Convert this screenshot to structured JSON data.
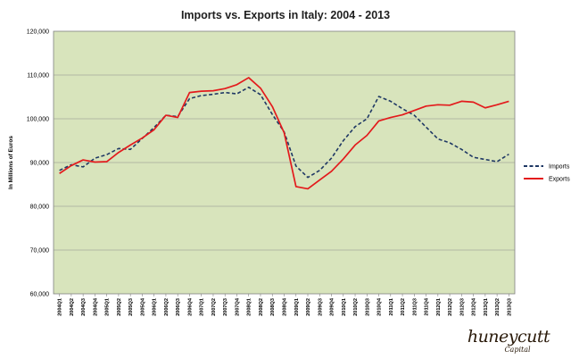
{
  "colors": {
    "plot_background": "#d8e4bc",
    "imports": "#1f3864",
    "exports": "#e31a1c",
    "grid": "#8c8c8c"
  },
  "brand": {
    "name": "huneycutt",
    "sub": "Capital"
  },
  "chart_data": {
    "type": "line",
    "title": "Imports vs. Exports in Italy: 2004 - 2013",
    "xlabel": "",
    "ylabel": "In Millions of Euros",
    "ylim": [
      60000,
      120000
    ],
    "yticks": [
      60000,
      70000,
      80000,
      90000,
      100000,
      110000,
      120000
    ],
    "ytick_labels": [
      "60,000",
      "70,000",
      "80,000",
      "90,000",
      "100,000",
      "110,000",
      "120,000"
    ],
    "grid": true,
    "legend_position": "right",
    "categories": [
      "2004Q1",
      "2004Q2",
      "2004Q3",
      "2004Q4",
      "2005Q1",
      "2005Q2",
      "2005Q3",
      "2005Q4",
      "2006Q1",
      "2006Q2",
      "2006Q3",
      "2006Q4",
      "2007Q1",
      "2007Q2",
      "2007Q3",
      "2007Q4",
      "2008Q1",
      "2008Q2",
      "2008Q3",
      "2008Q4",
      "2009Q1",
      "2009Q2",
      "2009Q3",
      "2009Q4",
      "2010Q1",
      "2010Q2",
      "2010Q3",
      "2010Q4",
      "2011Q1",
      "2011Q2",
      "2011Q3",
      "2011Q4",
      "2012Q1",
      "2012Q2",
      "2012Q3",
      "2012Q4",
      "2013Q1",
      "2013Q2",
      "2013Q3"
    ],
    "series": [
      {
        "name": "Imports",
        "style": "dashed",
        "values": [
          88200,
          89500,
          89000,
          91000,
          91800,
          93200,
          93000,
          95500,
          98000,
          100800,
          100500,
          104600,
          105300,
          105600,
          106000,
          105700,
          107200,
          105500,
          101000,
          97000,
          89200,
          86600,
          88200,
          91000,
          95000,
          98200,
          100000,
          105100,
          104000,
          102300,
          100800,
          98100,
          95400,
          94500,
          93000,
          91200,
          90700,
          90200,
          91900
        ]
      },
      {
        "name": "Exports",
        "style": "solid",
        "values": [
          87500,
          89300,
          90600,
          90100,
          90200,
          92300,
          94000,
          95600,
          97500,
          100800,
          100300,
          106000,
          106300,
          106400,
          106900,
          107800,
          109400,
          107000,
          102800,
          96800,
          84500,
          84000,
          86000,
          88000,
          90800,
          94000,
          96200,
          99500,
          100300,
          100900,
          101900,
          102900,
          103200,
          103100,
          104000,
          103800,
          102500,
          103200,
          104000
        ]
      }
    ]
  }
}
